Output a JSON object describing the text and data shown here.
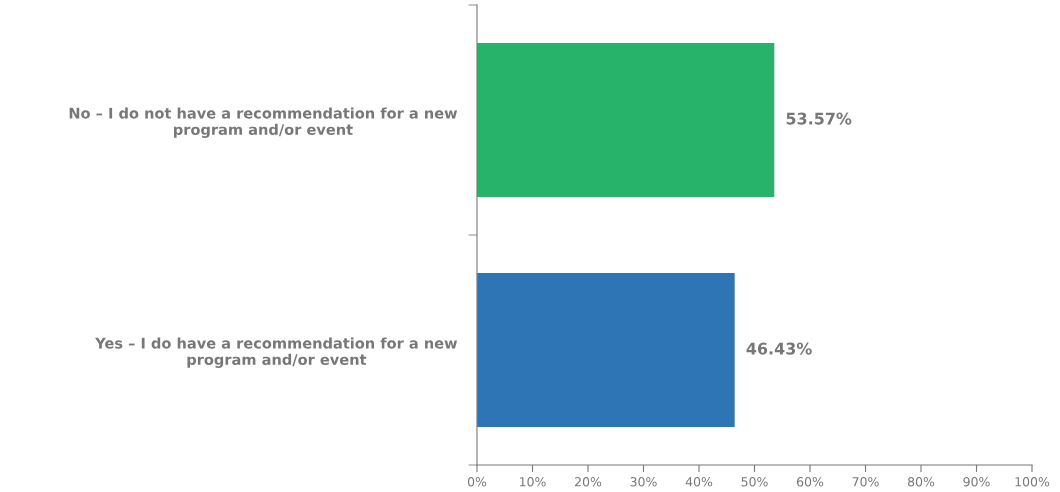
{
  "chart_data": {
    "type": "bar",
    "orientation": "horizontal",
    "categories": [
      "No – I do not have a recommendation for a new\nprogram and/or event",
      "Yes – I do have a recommendation for a new\nprogram and/or event"
    ],
    "values": [
      53.57,
      46.43
    ],
    "colors": [
      "#27b36a",
      "#2e75b5"
    ],
    "value_labels": [
      "53.57%",
      "46.43%"
    ],
    "xlim": [
      0,
      100
    ],
    "xticks": [
      {
        "value": 0,
        "label": "0%"
      },
      {
        "value": 10,
        "label": "10%"
      },
      {
        "value": 20,
        "label": "20%"
      },
      {
        "value": 30,
        "label": "30%"
      },
      {
        "value": 40,
        "label": "40%"
      },
      {
        "value": 50,
        "label": "50%"
      },
      {
        "value": 60,
        "label": "60%"
      },
      {
        "value": 70,
        "label": "70%"
      },
      {
        "value": 80,
        "label": "80%"
      },
      {
        "value": 90,
        "label": "90%"
      },
      {
        "value": 100,
        "label": "100%"
      }
    ],
    "grid": false
  }
}
